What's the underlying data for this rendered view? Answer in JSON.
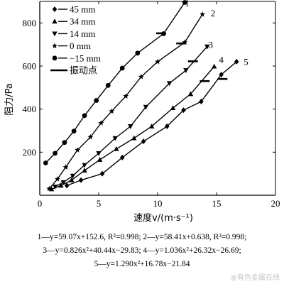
{
  "chart_data": {
    "type": "line",
    "xlabel": "速度v/(m·s⁻¹)",
    "ylabel": "阻力/Pa",
    "xlim": [
      0,
      20
    ],
    "ylim": [
      0,
      900
    ],
    "xticks": [
      0,
      5,
      10,
      15,
      20
    ],
    "yticks": [
      200,
      400,
      600,
      800
    ],
    "legend": {
      "placement": "top-left",
      "entries": [
        {
          "marker": "diamond",
          "label": "45 mm"
        },
        {
          "marker": "triangle-up",
          "label": "34 mm"
        },
        {
          "marker": "triangle-down",
          "label": "14 mm"
        },
        {
          "marker": "star",
          "label": "0 mm"
        },
        {
          "marker": "circle",
          "label": "−15 mm"
        },
        {
          "marker": "dash",
          "label": "振动点"
        }
      ]
    },
    "series": [
      {
        "name": "1",
        "label_x": 12.5,
        "label_y": 895,
        "marker": "circle",
        "points": [
          [
            0.5,
            150
          ],
          [
            1.3,
            195
          ],
          [
            2.1,
            245
          ],
          [
            2.9,
            298
          ],
          [
            3.8,
            370
          ],
          [
            4.8,
            440
          ],
          [
            5.8,
            510
          ],
          [
            7.0,
            590
          ],
          [
            8.3,
            660
          ],
          [
            10.5,
            750
          ],
          [
            12.3,
            895
          ]
        ],
        "vibration_point": [
          10.3,
          752
        ]
      },
      {
        "name": "2",
        "label_x": 14.7,
        "label_y": 848,
        "marker": "star",
        "points": [
          [
            0.8,
            30
          ],
          [
            1.5,
            75
          ],
          [
            2.2,
            130
          ],
          [
            3.2,
            210
          ],
          [
            4.3,
            270
          ],
          [
            5.2,
            335
          ],
          [
            6.1,
            390
          ],
          [
            7.3,
            460
          ],
          [
            8.6,
            550
          ],
          [
            10.0,
            620
          ],
          [
            12.3,
            710
          ],
          [
            13.8,
            840
          ]
        ],
        "vibration_point": [
          12.0,
          705
        ]
      },
      {
        "name": "3",
        "label_x": 14.5,
        "label_y": 700,
        "marker": "triangle-down",
        "points": [
          [
            1.3,
            40
          ],
          [
            2.0,
            60
          ],
          [
            2.8,
            90
          ],
          [
            3.8,
            140
          ],
          [
            5.0,
            195
          ],
          [
            6.4,
            265
          ],
          [
            7.7,
            320
          ],
          [
            9.0,
            410
          ],
          [
            11.0,
            520
          ],
          [
            12.4,
            580
          ],
          [
            14.2,
            690
          ]
        ],
        "vibration_point": [
          13.0,
          622
        ]
      },
      {
        "name": "4",
        "label_x": 15.4,
        "label_y": 632,
        "marker": "triangle-up",
        "points": [
          [
            1.0,
            28
          ],
          [
            1.8,
            45
          ],
          [
            2.7,
            70
          ],
          [
            3.8,
            115
          ],
          [
            5.1,
            165
          ],
          [
            6.5,
            215
          ],
          [
            8.0,
            265
          ],
          [
            9.5,
            320
          ],
          [
            11.3,
            405
          ],
          [
            12.8,
            470
          ],
          [
            14.8,
            598
          ]
        ],
        "vibration_point": [
          14.0,
          530
        ]
      },
      {
        "name": "5",
        "label_x": 17.5,
        "label_y": 622,
        "marker": "diamond",
        "points": [
          [
            2.3,
            45
          ],
          [
            3.5,
            70
          ],
          [
            5.3,
            100
          ],
          [
            7.0,
            175
          ],
          [
            8.8,
            250
          ],
          [
            10.8,
            320
          ],
          [
            12.2,
            395
          ],
          [
            13.7,
            435
          ],
          [
            15.4,
            560
          ],
          [
            16.7,
            620
          ]
        ],
        "vibration_point": [
          15.5,
          540
        ]
      }
    ]
  },
  "equations": {
    "line1": "1—y=59.07x+152.6, R²=0.998; 2—y=58.41x+0.638, R²=0.998;",
    "line2": "3—y=0.826x²+40.44x−29.83; 4—y=1.036x²+26.32x−26.69;",
    "line3": "5—y=1.290x²+16.78x−21.84"
  },
  "watermark": "@有色金属在线"
}
